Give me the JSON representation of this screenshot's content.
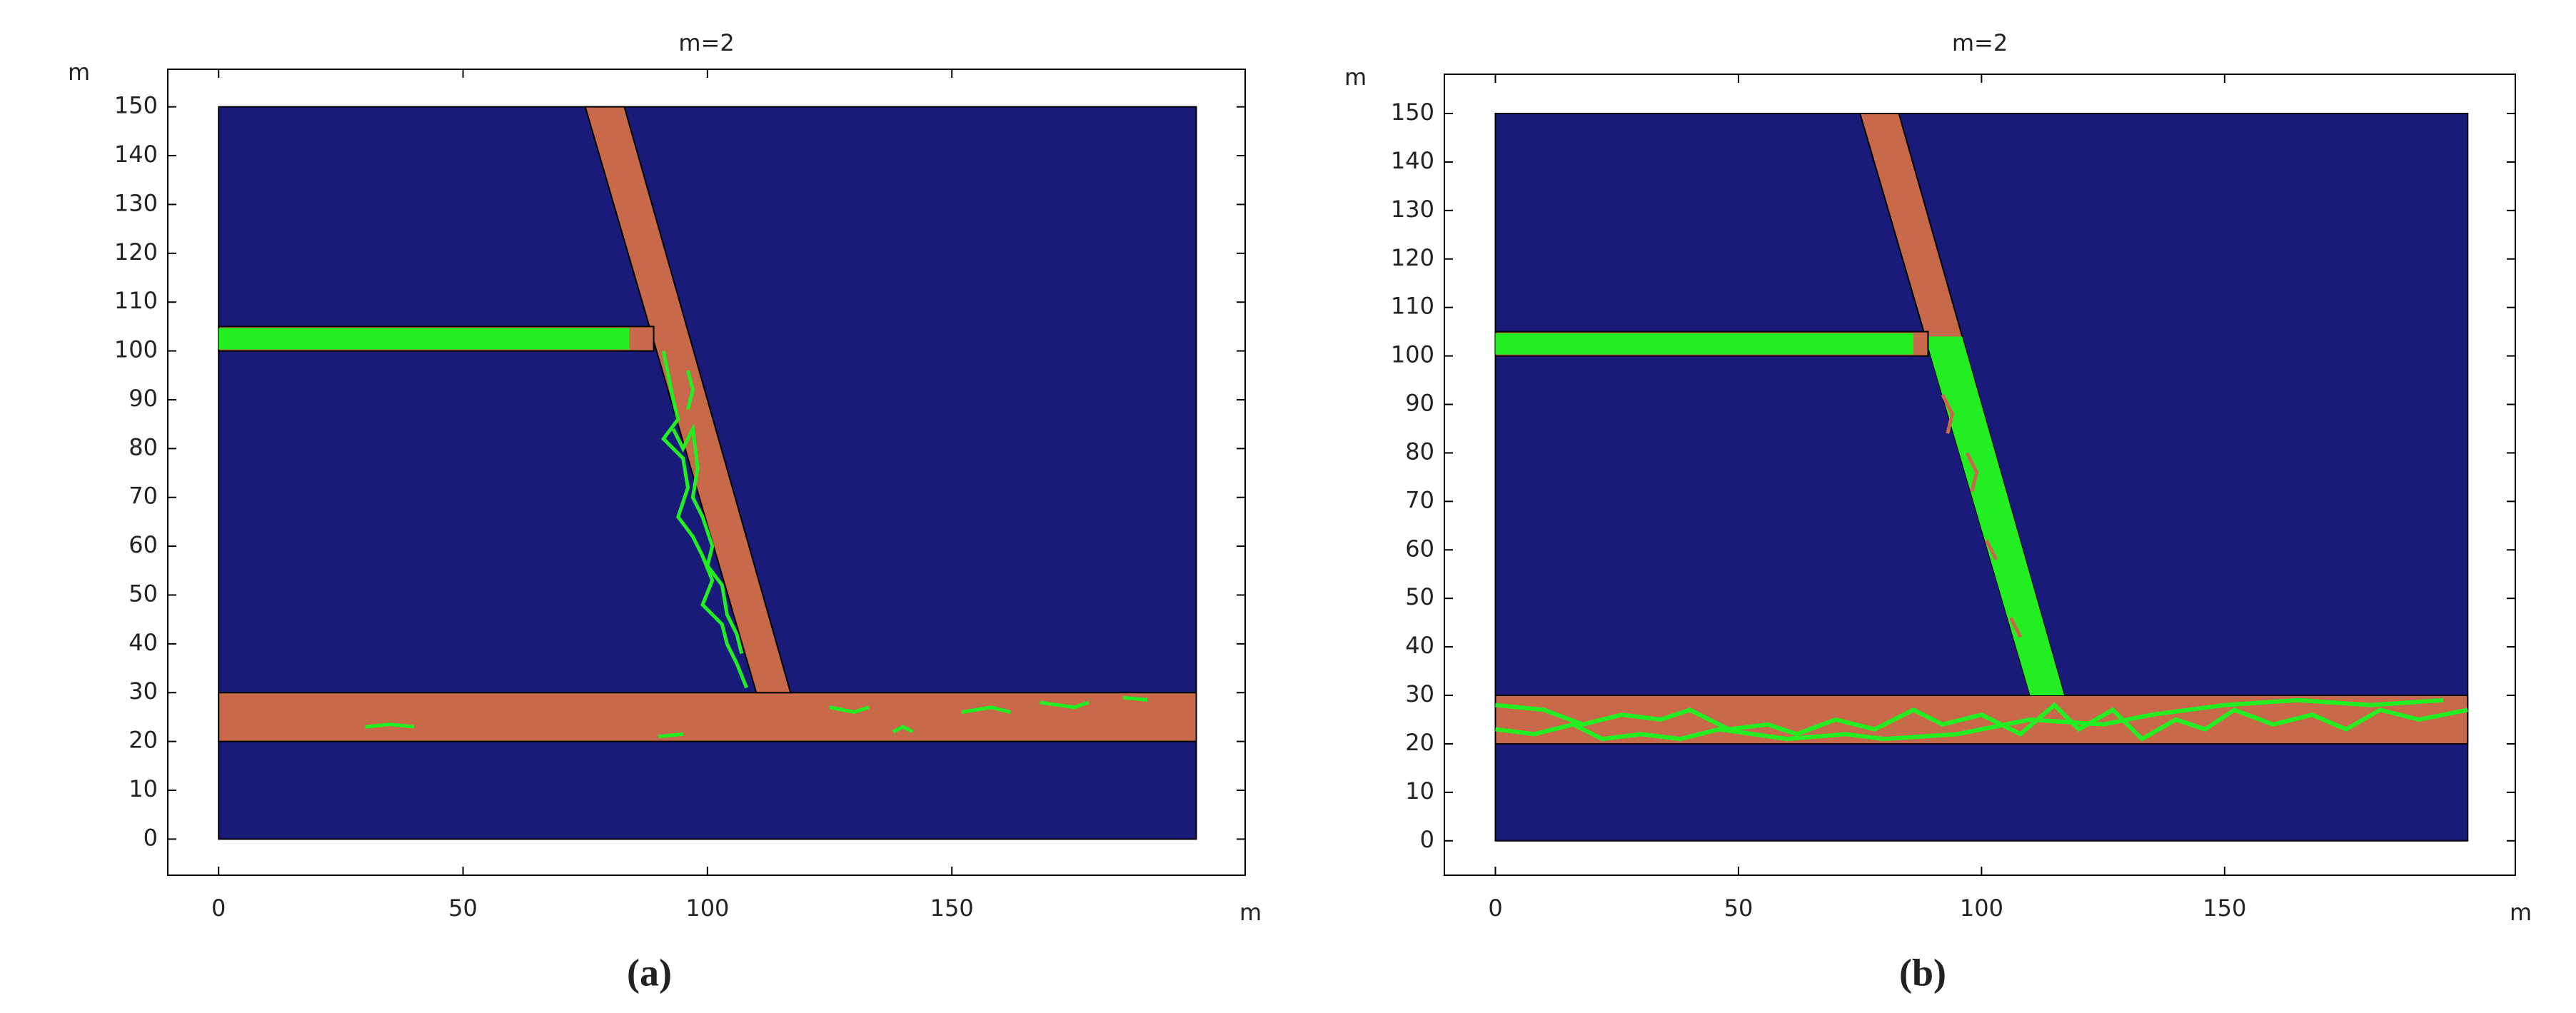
{
  "chart_data": [
    {
      "type": "geometry",
      "title": "m=2",
      "xlabel": "m",
      "ylabel": "m",
      "panel_label": "(a)",
      "xlim": [
        -10.4,
        210
      ],
      "ylim": [
        -7.4,
        157.7
      ],
      "xticks": [
        0,
        50,
        100,
        150
      ],
      "yticks": [
        0,
        10,
        20,
        30,
        40,
        50,
        60,
        70,
        80,
        90,
        100,
        110,
        120,
        130,
        140,
        150
      ]
    },
    {
      "type": "geometry",
      "title": "m=2",
      "xlabel": "m",
      "ylabel": "m",
      "panel_label": "(b)",
      "xlim": [
        -10.5,
        209.8
      ],
      "ylim": [
        -7.1,
        158.1
      ],
      "xticks": [
        0,
        50,
        100,
        150
      ],
      "yticks": [
        0,
        10,
        20,
        30,
        40,
        50,
        60,
        70,
        80,
        90,
        100,
        110,
        120,
        130,
        140,
        150
      ]
    }
  ]
}
